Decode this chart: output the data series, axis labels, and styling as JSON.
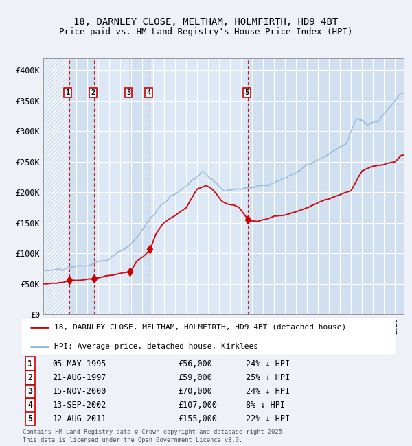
{
  "title_line1": "18, DARNLEY CLOSE, MELTHAM, HOLMFIRTH, HD9 4BT",
  "title_line2": "Price paid vs. HM Land Registry's House Price Index (HPI)",
  "background_color": "#eef2f8",
  "chart_bg": "#dce8f5",
  "grid_color": "#ffffff",
  "hpi_color": "#8ab4d8",
  "price_color": "#cc0000",
  "sale_marker_color": "#cc0000",
  "ylim": [
    0,
    420000
  ],
  "yticks": [
    0,
    50000,
    100000,
    150000,
    200000,
    250000,
    300000,
    350000,
    400000
  ],
  "ytick_labels": [
    "£0",
    "£50K",
    "£100K",
    "£150K",
    "£200K",
    "£250K",
    "£300K",
    "£350K",
    "£400K"
  ],
  "xlim_start": 1993.0,
  "xlim_end": 2025.8,
  "sales": [
    {
      "num": 1,
      "date": "05-MAY-1995",
      "year": 1995.36,
      "price": 56000,
      "pct": "24%",
      "dir": "↓"
    },
    {
      "num": 2,
      "date": "21-AUG-1997",
      "year": 1997.64,
      "price": 59000,
      "pct": "25%",
      "dir": "↓"
    },
    {
      "num": 3,
      "date": "15-NOV-2000",
      "year": 2000.87,
      "price": 70000,
      "pct": "24%",
      "dir": "↓"
    },
    {
      "num": 4,
      "date": "13-SEP-2002",
      "year": 2002.7,
      "price": 107000,
      "pct": "8%",
      "dir": "↓"
    },
    {
      "num": 5,
      "date": "12-AUG-2011",
      "year": 2011.62,
      "price": 155000,
      "pct": "22%",
      "dir": "↓"
    }
  ],
  "legend_line1": "18, DARNLEY CLOSE, MELTHAM, HOLMFIRTH, HD9 4BT (detached house)",
  "legend_line2": "HPI: Average price, detached house, Kirklees",
  "footer_line1": "Contains HM Land Registry data © Crown copyright and database right 2025.",
  "footer_line2": "This data is licensed under the Open Government Licence v3.0."
}
